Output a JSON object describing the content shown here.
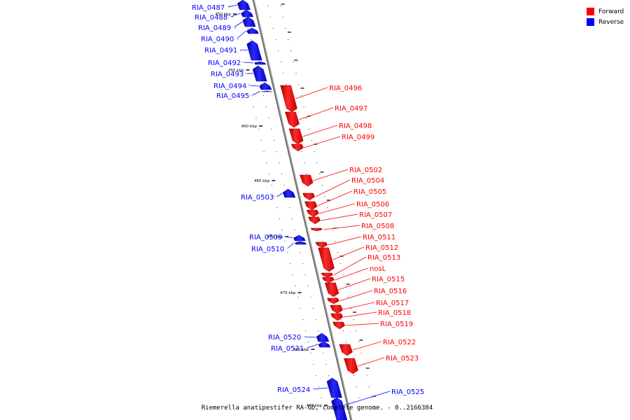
{
  "caption": "Riemerella anatipestifer RA-GD, complete genome. - 0..2166384",
  "legend": [
    {
      "label": "Forward",
      "color": "#ff0000"
    },
    {
      "label": "Reverse",
      "color": "#0000ff"
    }
  ],
  "colors": {
    "forward": "#ff0000",
    "reverse": "#0000ff",
    "axis": "#888888"
  },
  "ticks": [
    "450 kbp",
    "455 kbp",
    "460 kbp",
    "465 kbp",
    "470 kbp",
    "475 kbp",
    "480 kbp",
    "485 kbp"
  ],
  "genes": [
    {
      "name": "RIA_0487",
      "strand": "reverse"
    },
    {
      "name": "RIA_0488",
      "strand": "reverse"
    },
    {
      "name": "RIA_0489",
      "strand": "reverse"
    },
    {
      "name": "RIA_0490",
      "strand": "reverse"
    },
    {
      "name": "RIA_0491",
      "strand": "reverse"
    },
    {
      "name": "RIA_0492",
      "strand": "reverse"
    },
    {
      "name": "RIA_0493",
      "strand": "reverse"
    },
    {
      "name": "RIA_0494",
      "strand": "reverse"
    },
    {
      "name": "RIA_0495",
      "strand": "reverse"
    },
    {
      "name": "RIA_0496",
      "strand": "forward"
    },
    {
      "name": "RIA_0497",
      "strand": "forward"
    },
    {
      "name": "RIA_0498",
      "strand": "forward"
    },
    {
      "name": "RIA_0499",
      "strand": "forward"
    },
    {
      "name": "RIA_0502",
      "strand": "forward"
    },
    {
      "name": "RIA_0504",
      "strand": "forward"
    },
    {
      "name": "RIA_0505",
      "strand": "forward"
    },
    {
      "name": "RIA_0506",
      "strand": "forward"
    },
    {
      "name": "RIA_0507",
      "strand": "forward"
    },
    {
      "name": "RIA_0508",
      "strand": "forward"
    },
    {
      "name": "RIA_0503",
      "strand": "reverse"
    },
    {
      "name": "RIA_0509",
      "strand": "reverse"
    },
    {
      "name": "RIA_0510",
      "strand": "reverse"
    },
    {
      "name": "RIA_0511",
      "strand": "forward"
    },
    {
      "name": "RIA_0512",
      "strand": "forward"
    },
    {
      "name": "RIA_0513",
      "strand": "forward"
    },
    {
      "name": "nosL",
      "strand": "forward"
    },
    {
      "name": "RIA_0515",
      "strand": "forward"
    },
    {
      "name": "RIA_0516",
      "strand": "forward"
    },
    {
      "name": "RIA_0517",
      "strand": "forward"
    },
    {
      "name": "RIA_0518",
      "strand": "forward"
    },
    {
      "name": "RIA_0519",
      "strand": "forward"
    },
    {
      "name": "RIA_0520",
      "strand": "reverse"
    },
    {
      "name": "RIA_0521",
      "strand": "reverse"
    },
    {
      "name": "RIA_0522",
      "strand": "forward"
    },
    {
      "name": "RIA_0523",
      "strand": "forward"
    },
    {
      "name": "RIA_0524",
      "strand": "reverse"
    },
    {
      "name": "RIA_0525",
      "strand": "reverse"
    }
  ]
}
